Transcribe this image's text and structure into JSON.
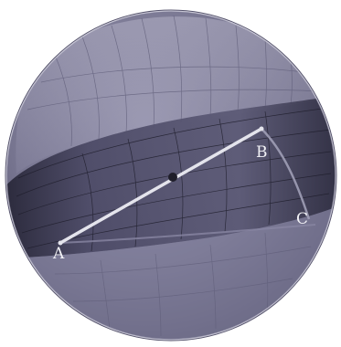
{
  "points": {
    "a": "A",
    "b": "B",
    "c": "C"
  },
  "colors": {
    "sphere_light": "#8d8ba6",
    "sphere_mid": "#6b6987",
    "sphere_dark": "#3e3c55",
    "band_dark": "#2c2b3d",
    "cap_light": "#a19fb8",
    "rim": "#c8c6d6",
    "segment": "#e4e4ec",
    "grid_line": "#4a4862",
    "center_dot": "#1f1e2a",
    "label": "#f2f2f6"
  }
}
